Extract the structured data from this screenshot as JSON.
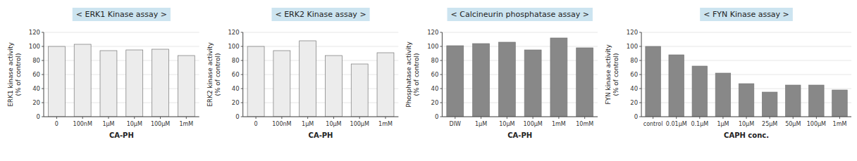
{
  "chart_data": [
    {
      "type": "bar",
      "title": "< ERK1  Kinase assay >",
      "ylabel": "ERK1 kinase activity\n(% of control)",
      "xlabel": "CA-PH",
      "categories": [
        "0",
        "100nM",
        "1μM",
        "10μM",
        "100μM",
        "1mM"
      ],
      "values": [
        100,
        103,
        94,
        95,
        96,
        87
      ],
      "color": "#ececec",
      "ylim": [
        0,
        120
      ],
      "yticks": [
        0,
        20,
        40,
        60,
        80,
        100,
        120
      ]
    },
    {
      "type": "bar",
      "title": "< ERK2  Kinase assay >",
      "ylabel": "ERK2 kinase activity\n(% of control)",
      "xlabel": "CA-PH",
      "categories": [
        "0",
        "100nM",
        "1μM",
        "10μM",
        "100μM",
        "1mM"
      ],
      "values": [
        100,
        94,
        108,
        87,
        75,
        91
      ],
      "color": "#ececec",
      "ylim": [
        0,
        120
      ],
      "yticks": [
        0,
        20,
        40,
        60,
        80,
        100,
        120
      ]
    },
    {
      "type": "bar",
      "title": "< Calcineurin phosphatase assay >",
      "ylabel": "Phosphatase activity\n(% of control)",
      "xlabel": "CA-PH",
      "categories": [
        "DIW",
        "1μM",
        "10μM",
        "100μM",
        "1mM",
        "10mM"
      ],
      "values": [
        101,
        104,
        106,
        95,
        112,
        98
      ],
      "color": "#888888",
      "ylim": [
        0,
        120
      ],
      "yticks": [
        0,
        20,
        40,
        60,
        80,
        100,
        120
      ]
    },
    {
      "type": "bar",
      "title": "< FYN  Kinase assay >",
      "ylabel": "FYN kinase activity\n(% of control)",
      "xlabel": "CAPH conc.",
      "categories": [
        "control",
        "0.01μM",
        "0.1μM",
        "1μM",
        "10μM",
        "25μM",
        "50μM",
        "100μM",
        "1mM"
      ],
      "values": [
        100,
        88,
        72,
        62,
        47,
        35,
        45,
        45,
        38
      ],
      "color": "#888888",
      "ylim": [
        0,
        120
      ],
      "yticks": [
        0,
        20,
        40,
        60,
        80,
        100,
        120
      ]
    }
  ]
}
